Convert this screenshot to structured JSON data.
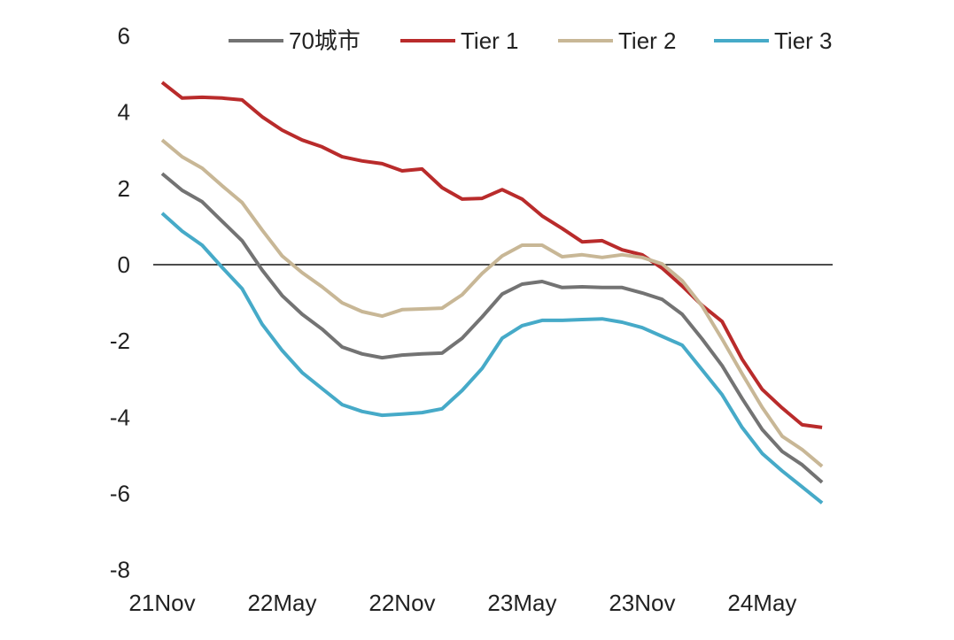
{
  "chart_data": {
    "type": "line",
    "title": "",
    "xlabel": "",
    "ylabel": "",
    "ylim": [
      -8,
      6
    ],
    "yticks": [
      "6",
      "4",
      "2",
      "0",
      "-2",
      "-4",
      "-6",
      "-8"
    ],
    "ytick_values": [
      6,
      4,
      2,
      0,
      -2,
      -4,
      -6,
      -8
    ],
    "xtick_labels": [
      "21Nov",
      "22May",
      "22Nov",
      "23May",
      "23Nov",
      "24May"
    ],
    "xtick_index": [
      0,
      6,
      12,
      18,
      24,
      30
    ],
    "n_points": 34,
    "zero_line": true,
    "grid": false,
    "legend_position": "top",
    "series": [
      {
        "name": "70城市",
        "color": "#737373",
        "values": [
          2.39,
          1.95,
          1.65,
          1.14,
          0.63,
          -0.14,
          -0.81,
          -1.3,
          -1.69,
          -2.16,
          -2.34,
          -2.44,
          -2.37,
          -2.34,
          -2.32,
          -1.93,
          -1.37,
          -0.77,
          -0.51,
          -0.44,
          -0.6,
          -0.58,
          -0.6,
          -0.6,
          -0.74,
          -0.91,
          -1.3,
          -1.95,
          -2.65,
          -3.51,
          -4.32,
          -4.9,
          -5.25,
          -5.71
        ]
      },
      {
        "name": "Tier 1",
        "color": "#b92b2b",
        "values": [
          4.78,
          4.37,
          4.39,
          4.37,
          4.32,
          3.88,
          3.53,
          3.27,
          3.09,
          2.83,
          2.72,
          2.65,
          2.46,
          2.51,
          2.02,
          1.72,
          1.74,
          1.97,
          1.72,
          1.28,
          0.95,
          0.6,
          0.63,
          0.39,
          0.26,
          -0.09,
          -0.56,
          -1.07,
          -1.49,
          -2.48,
          -3.27,
          -3.76,
          -4.2,
          -4.27
        ]
      },
      {
        "name": "Tier 2",
        "color": "#c8b796",
        "values": [
          3.27,
          2.83,
          2.53,
          2.07,
          1.63,
          0.91,
          0.23,
          -0.21,
          -0.58,
          -1.0,
          -1.23,
          -1.35,
          -1.18,
          -1.16,
          -1.14,
          -0.79,
          -0.23,
          0.23,
          0.51,
          0.51,
          0.21,
          0.26,
          0.19,
          0.26,
          0.19,
          0.02,
          -0.42,
          -1.09,
          -1.95,
          -2.86,
          -3.74,
          -4.5,
          -4.85,
          -5.29
        ]
      },
      {
        "name": "Tier 3",
        "color": "#46aac8",
        "values": [
          1.35,
          0.88,
          0.51,
          -0.07,
          -0.63,
          -1.56,
          -2.25,
          -2.83,
          -3.25,
          -3.67,
          -3.85,
          -3.95,
          -3.92,
          -3.88,
          -3.78,
          -3.3,
          -2.72,
          -1.93,
          -1.6,
          -1.46,
          -1.46,
          -1.44,
          -1.42,
          -1.51,
          -1.65,
          -1.88,
          -2.11,
          -2.76,
          -3.41,
          -4.27,
          -4.95,
          -5.41,
          -5.83,
          -6.25
        ]
      }
    ]
  }
}
